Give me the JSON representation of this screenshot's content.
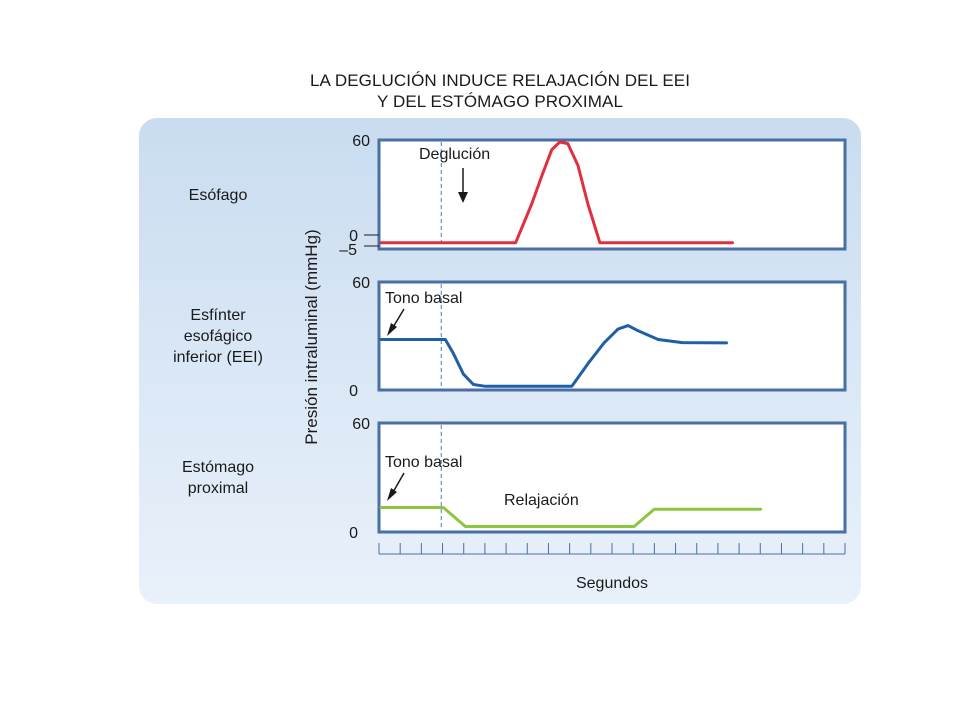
{
  "title": {
    "line1": "LA DEGLUCIÓN INDUCE RELAJACIÓN DEL EEI",
    "line2": "Y DEL ESTÓMAGO PROXIMAL"
  },
  "colors": {
    "esofago": "#e0303e",
    "eei": "#1f5fa8",
    "estomago": "#8cc63f",
    "frame": "#4a6fa5",
    "marker": "#4a7bc0"
  },
  "chart_data": {
    "type": "line",
    "ylabel": "Presión intraluminal (mmHg)",
    "xlabel": "Segundos",
    "x_ticks": 23,
    "swallow_marker_x": 3,
    "panels": [
      {
        "label": "Esófago",
        "ylim": [
          -5,
          60
        ],
        "tick_labels": [
          "60",
          "0",
          "-5"
        ],
        "annotation": "Deglución",
        "series": [
          {
            "name": "Esófago",
            "color": "#e0303e",
            "points": [
              [
                0,
                -5
              ],
              [
                6.7,
                -5
              ],
              [
                7.5,
                20
              ],
              [
                8,
                38
              ],
              [
                8.5,
                55
              ],
              [
                8.9,
                60
              ],
              [
                9.3,
                59
              ],
              [
                9.8,
                45
              ],
              [
                10.3,
                20
              ],
              [
                10.9,
                -5
              ],
              [
                17.5,
                -5
              ]
            ]
          }
        ]
      },
      {
        "label": "Esfínter esofágico inferior (EEI)",
        "ylim": [
          0,
          60
        ],
        "tick_labels": [
          "60",
          "0"
        ],
        "annotation": "Tono basal",
        "series": [
          {
            "name": "Esfínter esofágico inferior (EEI)",
            "color": "#1f5fa8",
            "points": [
              [
                0,
                28
              ],
              [
                3.2,
                28
              ],
              [
                3.6,
                20
              ],
              [
                4.1,
                8
              ],
              [
                4.6,
                2
              ],
              [
                5.2,
                1
              ],
              [
                9.5,
                1
              ],
              [
                10.3,
                14
              ],
              [
                11.1,
                26
              ],
              [
                11.8,
                34
              ],
              [
                12.3,
                36
              ],
              [
                12.8,
                33
              ],
              [
                13.8,
                28
              ],
              [
                15,
                26.2
              ],
              [
                17.2,
                26
              ]
            ]
          }
        ]
      },
      {
        "label": "Estómago proximal",
        "ylim": [
          0,
          60
        ],
        "tick_labels": [
          "60",
          "0"
        ],
        "annotation": "Tono basal",
        "annotation2": "Relajación",
        "series": [
          {
            "name": "Estómago proximal",
            "color": "#8cc63f",
            "points": [
              [
                0,
                13
              ],
              [
                3.1,
                13
              ],
              [
                4.2,
                2
              ],
              [
                12.6,
                2
              ],
              [
                13.6,
                12
              ],
              [
                18.9,
                12
              ]
            ]
          }
        ]
      }
    ]
  }
}
